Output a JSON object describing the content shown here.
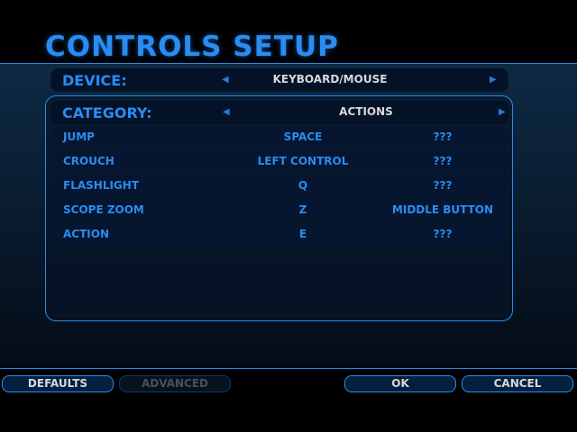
{
  "title": "CONTROLS SETUP",
  "device": {
    "label": "DEVICE:",
    "value": "KEYBOARD/MOUSE"
  },
  "category": {
    "label": "CATEGORY:",
    "value": "ACTIONS"
  },
  "bindings": [
    {
      "action": "JUMP",
      "primary": "SPACE",
      "secondary": "???"
    },
    {
      "action": "CROUCH",
      "primary": "LEFT CONTROL",
      "secondary": "???"
    },
    {
      "action": "FLASHLIGHT",
      "primary": "Q",
      "secondary": "???"
    },
    {
      "action": "SCOPE ZOOM",
      "primary": "Z",
      "secondary": "MIDDLE BUTTON"
    },
    {
      "action": "ACTION",
      "primary": "E",
      "secondary": "???"
    }
  ],
  "buttons": {
    "defaults": "DEFAULTS",
    "advanced": "ADVANCED",
    "ok": "OK",
    "cancel": "CANCEL"
  },
  "colors": {
    "accent": "#2a8cf0",
    "background": "#000000"
  }
}
